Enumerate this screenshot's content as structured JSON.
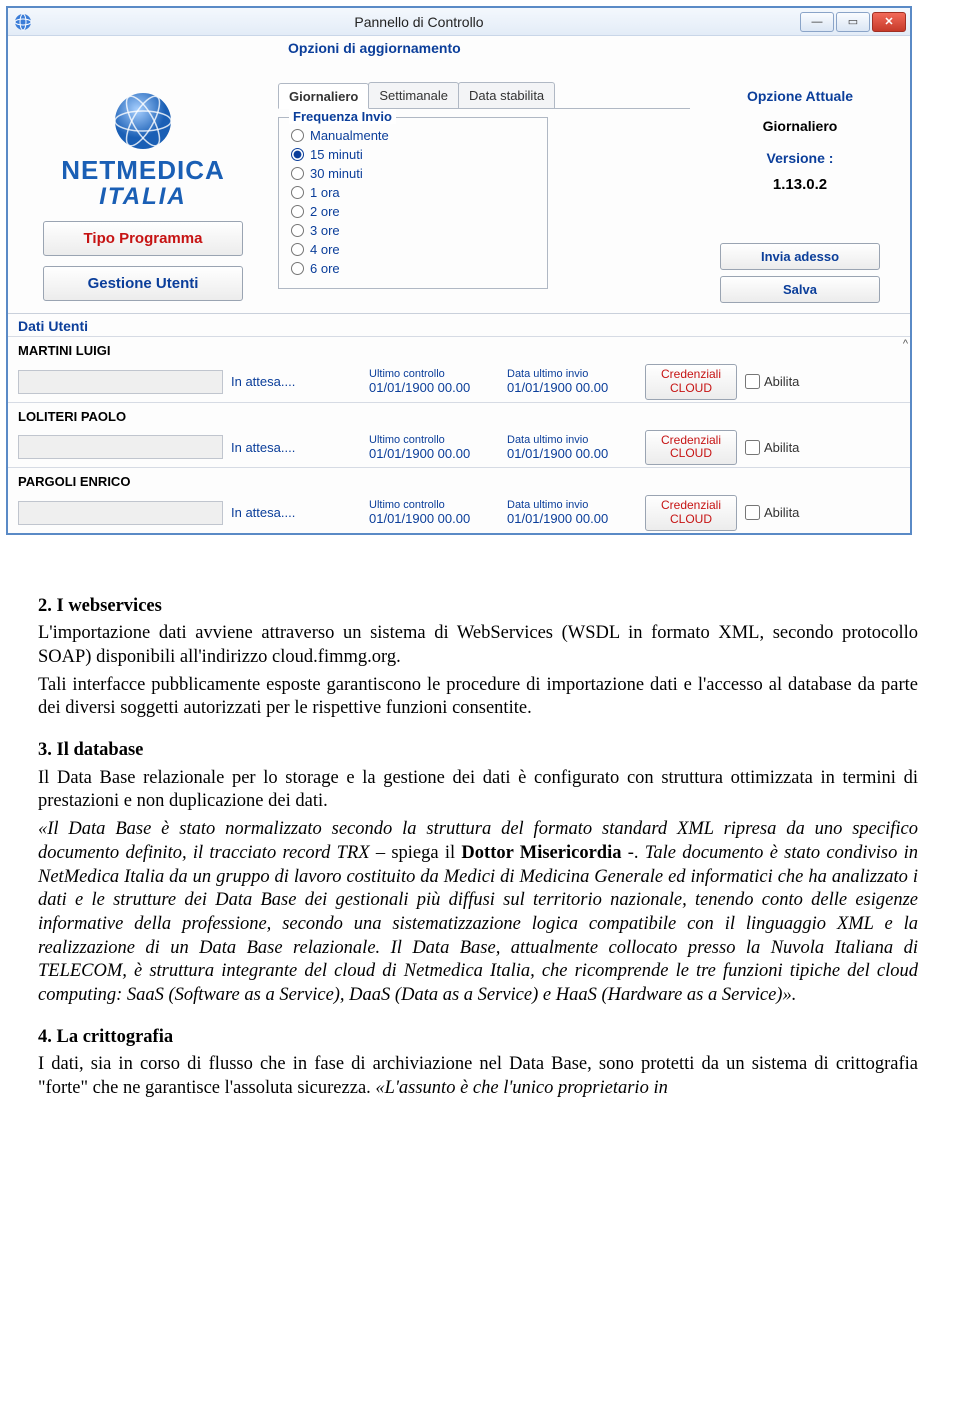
{
  "window": {
    "title": "Pannello di Controllo",
    "section_title": "Opzioni di aggiornamento",
    "logo": {
      "line1": "NETMEDICA",
      "line2": "ITALIA"
    },
    "side_buttons": {
      "tipo_programma": "Tipo Programma",
      "gestione_utenti": "Gestione Utenti"
    },
    "tabs": [
      {
        "label": "Giornaliero",
        "active": true
      },
      {
        "label": "Settimanale",
        "active": false
      },
      {
        "label": "Data stabilita",
        "active": false
      }
    ],
    "fieldset_legend": "Frequenza Invio",
    "radio_options": [
      {
        "label": "Manualmente",
        "checked": false
      },
      {
        "label": "15 minuti",
        "checked": true
      },
      {
        "label": "30 minuti",
        "checked": false
      },
      {
        "label": "1 ora",
        "checked": false
      },
      {
        "label": "2 ore",
        "checked": false
      },
      {
        "label": "3 ore",
        "checked": false
      },
      {
        "label": "4 ore",
        "checked": false
      },
      {
        "label": "6 ore",
        "checked": false
      }
    ],
    "right": {
      "opzione_label": "Opzione Attuale",
      "opzione_value": "Giornaliero",
      "versione_label": "Versione :",
      "versione_value": "1.13.0.2",
      "invia_btn": "Invia adesso",
      "salva_btn": "Salva"
    },
    "users_title": "Dati Utenti",
    "status_text": "In attesa....",
    "ultimo_controllo_label": "Ultimo controllo",
    "data_ultimo_invio_label": "Data ultimo invio",
    "default_datetime": "01/01/1900 00.00",
    "cred_btn_line1": "Credenziali",
    "cred_btn_line2": "CLOUD",
    "abilita_label": "Abilita",
    "users": [
      {
        "name": "MARTINI LUIGI"
      },
      {
        "name": "LOLITERI PAOLO"
      },
      {
        "name": "PARGOLI ENRICO"
      }
    ]
  },
  "doc": {
    "s2_title": "2. I webservices",
    "s2_p1": "L'importazione dati avviene attraverso un sistema di WebServices (WSDL in formato XML, secondo protocollo SOAP) disponibili all'indirizzo cloud.fimmg.org.",
    "s2_p2": "Tali interfacce pubblicamente esposte garantiscono le procedure di importazione dati e l'accesso al database da parte dei diversi soggetti autorizzati per le rispettive funzioni consentite.",
    "s3_title": "3. Il database",
    "s3_p1": "Il Data Base relazionale per lo storage e la gestione dei dati è configurato con struttura ottimizzata in termini di prestazioni e non duplicazione dei dati.",
    "s3_q_open": "«Il Data Base è stato normalizzato secondo la struttura del formato standard XML ripresa da uno specifico documento definito, il tracciato record TRX",
    "s3_said": " – spiega il ",
    "s3_doctor": "Dottor Misericordia",
    "s3_dash": " -. ",
    "s3_q_rest": "Tale documento è stato condiviso in  NetMedica Italia da un gruppo di lavoro costituito da Medici di Medicina Generale ed informatici che ha analizzato i dati e le strutture dei Data Base dei gestionali più diffusi sul territorio nazionale, tenendo conto delle esigenze informative della professione, secondo una sistematizzazione logica compatibile con il linguaggio XML e la realizzazione di un Data Base relazionale. Il Data Base, attualmente collocato presso la Nuvola Italiana di TELECOM, è struttura integrante del cloud di Netmedica Italia, che ricomprende le tre funzioni tipiche del cloud computing: SaaS (Software as a Service), DaaS (Data as a Service) e HaaS (Hardware as a Service)».",
    "s4_title": "4. La crittografia",
    "s4_p1a": "I dati, sia in corso di flusso che in fase di archiviazione nel Data Base, sono protetti da un sistema di crittografia \"forte\" che ne garantisce l'assoluta sicurezza. ",
    "s4_p1b": "«L'assunto è che l'unico proprietario in"
  },
  "colors": {
    "accent_blue": "#0b3e9a",
    "accent_red": "#c61313",
    "border_blue": "#5a8ac6"
  }
}
